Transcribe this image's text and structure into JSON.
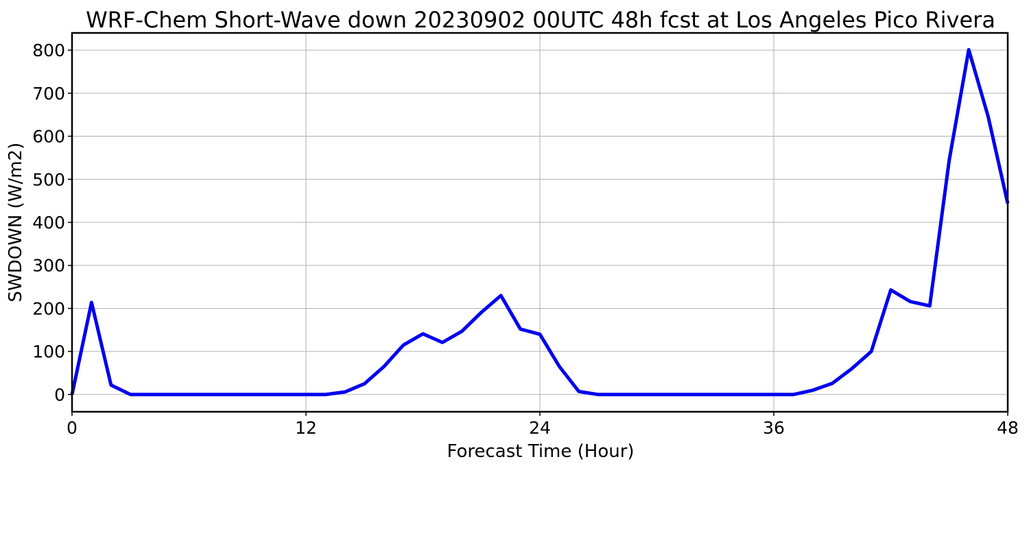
{
  "chart_data": {
    "type": "line",
    "title": "WRF-Chem Short-Wave down  20230902 00UTC 48h fcst at Los Angeles Pico Rivera",
    "xlabel": "Forecast Time (Hour)",
    "ylabel": "SWDOWN  (W/m2)",
    "xlim": [
      0,
      48
    ],
    "ylim": [
      -40,
      840
    ],
    "xticks": [
      0,
      12,
      24,
      36,
      48
    ],
    "yticks": [
      0,
      100,
      200,
      300,
      400,
      500,
      600,
      700,
      800
    ],
    "grid": true,
    "series": [
      {
        "color": "#0000ee",
        "x": [
          0,
          1,
          2,
          3,
          4,
          5,
          6,
          7,
          8,
          9,
          10,
          11,
          12,
          13,
          14,
          15,
          16,
          17,
          18,
          19,
          20,
          21,
          22,
          23,
          24,
          25,
          26,
          27,
          28,
          29,
          30,
          31,
          32,
          33,
          34,
          35,
          36,
          37,
          38,
          39,
          40,
          41,
          42,
          43,
          44,
          45,
          46,
          47,
          48
        ],
        "y": [
          0,
          214,
          22,
          0,
          0,
          0,
          0,
          0,
          0,
          0,
          0,
          0,
          0,
          0,
          6,
          25,
          65,
          115,
          141,
          121,
          147,
          191,
          230,
          152,
          140,
          65,
          7,
          0,
          0,
          0,
          0,
          0,
          0,
          0,
          0,
          0,
          0,
          0,
          10,
          26,
          60,
          100,
          243,
          216,
          206,
          545,
          801,
          645,
          444
        ]
      }
    ]
  }
}
